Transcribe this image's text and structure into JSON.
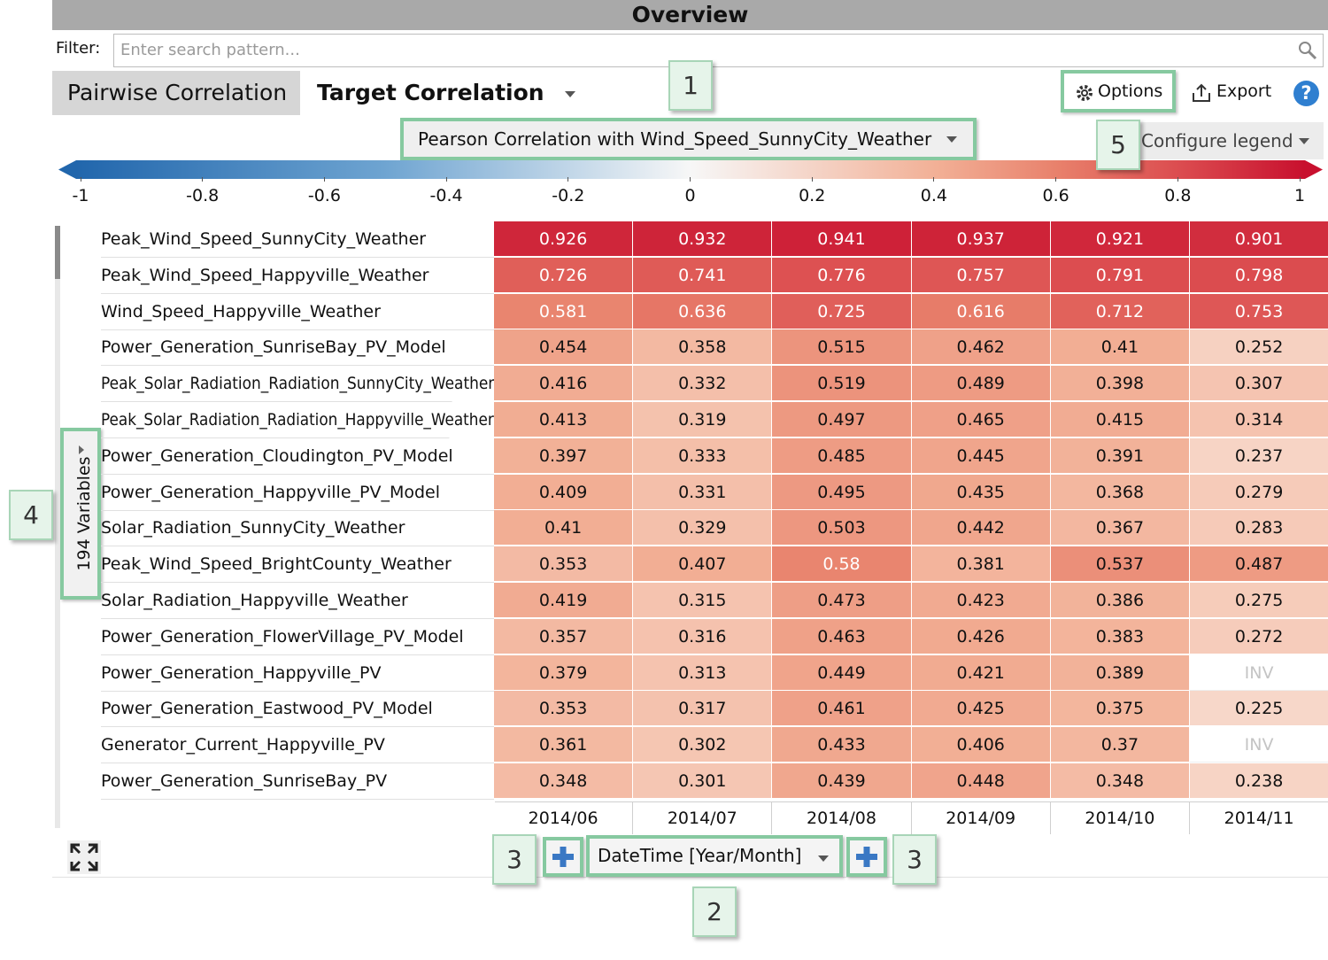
{
  "header": {
    "title": "Overview"
  },
  "filter": {
    "label": "Filter:",
    "placeholder": "Enter search pattern..."
  },
  "tabs": [
    {
      "label": "Pairwise Correlation"
    },
    {
      "label": "Target Correlation"
    }
  ],
  "toolbar": {
    "options": "Options",
    "export": "Export",
    "help": "?"
  },
  "measure": "Pearson Correlation with Wind_Speed_SunnyCity_Weather",
  "configure_legend": "Configure legend",
  "legend": {
    "range": [
      -1,
      1
    ],
    "ticks": [
      -1,
      -0.8,
      -0.6,
      -0.4,
      -0.2,
      0,
      0.2,
      0.4,
      0.6,
      0.8,
      1
    ]
  },
  "variables": "194 Variables",
  "table": {
    "columns": [
      "2014/06",
      "2014/07",
      "2014/08",
      "2014/09",
      "2014/10",
      "2014/11"
    ],
    "rows": [
      {
        "label": "Peak_Wind_Speed_SunnyCity_Weather",
        "values": [
          0.926,
          0.932,
          0.941,
          0.937,
          0.921,
          0.901
        ]
      },
      {
        "label": "Peak_Wind_Speed_Happyville_Weather",
        "values": [
          0.726,
          0.741,
          0.776,
          0.757,
          0.791,
          0.798
        ]
      },
      {
        "label": "Wind_Speed_Happyville_Weather",
        "values": [
          0.581,
          0.636,
          0.725,
          0.616,
          0.712,
          0.753
        ]
      },
      {
        "label": "Power_Generation_SunriseBay_PV_Model",
        "values": [
          0.454,
          0.358,
          0.515,
          0.462,
          0.41,
          0.252
        ]
      },
      {
        "label": "Peak_Solar_Radiation_Radiation_SunnyCity_Weather",
        "values": [
          0.416,
          0.332,
          0.519,
          0.489,
          0.398,
          0.307
        ]
      },
      {
        "label": "Peak_Solar_Radiation_Radiation_Happyville_Weather",
        "values": [
          0.413,
          0.319,
          0.497,
          0.465,
          0.415,
          0.314
        ]
      },
      {
        "label": "Power_Generation_Cloudington_PV_Model",
        "values": [
          0.397,
          0.333,
          0.485,
          0.445,
          0.391,
          0.237
        ]
      },
      {
        "label": "Power_Generation_Happyville_PV_Model",
        "values": [
          0.409,
          0.331,
          0.495,
          0.435,
          0.368,
          0.279
        ]
      },
      {
        "label": "Solar_Radiation_SunnyCity_Weather",
        "values": [
          0.41,
          0.329,
          0.503,
          0.442,
          0.367,
          0.283
        ]
      },
      {
        "label": "Peak_Wind_Speed_BrightCounty_Weather",
        "values": [
          0.353,
          0.407,
          0.58,
          0.381,
          0.537,
          0.487
        ]
      },
      {
        "label": "Solar_Radiation_Happyville_Weather",
        "values": [
          0.419,
          0.315,
          0.473,
          0.423,
          0.386,
          0.275
        ]
      },
      {
        "label": "Power_Generation_FlowerVillage_PV_Model",
        "values": [
          0.357,
          0.316,
          0.463,
          0.426,
          0.383,
          0.272
        ]
      },
      {
        "label": "Power_Generation_Happyville_PV",
        "values": [
          0.379,
          0.313,
          0.449,
          0.421,
          0.389,
          "INV"
        ]
      },
      {
        "label": "Power_Generation_Eastwood_PV_Model",
        "values": [
          0.353,
          0.317,
          0.461,
          0.425,
          0.375,
          0.225
        ]
      },
      {
        "label": "Generator_Current_Happyville_PV",
        "values": [
          0.361,
          0.302,
          0.433,
          0.406,
          0.37,
          "INV"
        ]
      },
      {
        "label": "Power_Generation_SunriseBay_PV",
        "values": [
          0.348,
          0.301,
          0.439,
          0.448,
          0.348,
          0.238
        ]
      }
    ]
  },
  "column_axis": "DateTime [Year/Month]",
  "callouts": [
    {
      "label": 1
    },
    {
      "label": 2
    },
    {
      "label": 3
    },
    {
      "label": 3
    },
    {
      "label": 4
    },
    {
      "label": 5
    }
  ]
}
